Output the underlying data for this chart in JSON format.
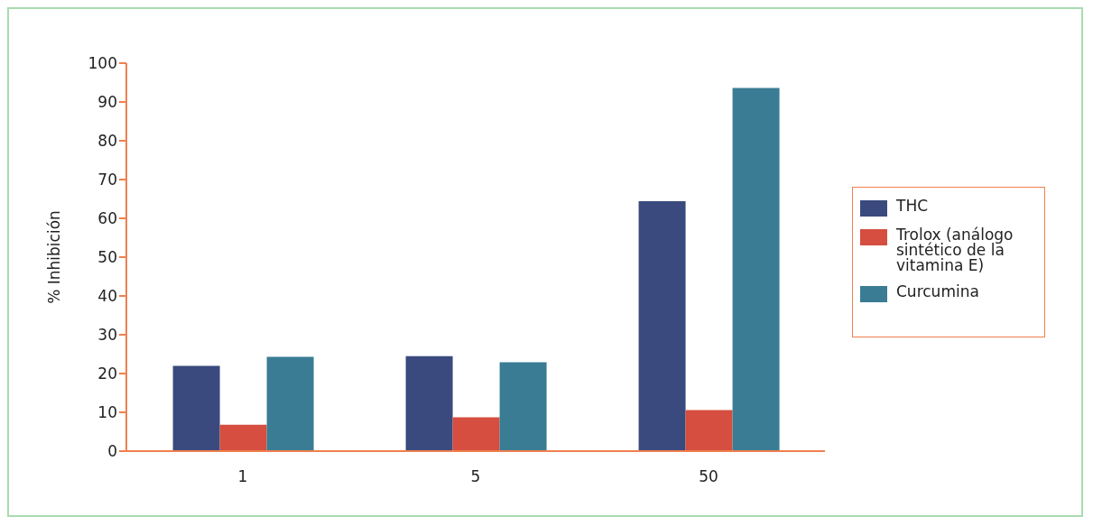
{
  "chart_data": {
    "type": "bar",
    "ylabel": "% Inhibición",
    "categories": [
      "1",
      "5",
      "50"
    ],
    "series": [
      {
        "name": "THC",
        "color": "#3a4a7e",
        "values": [
          22,
          24.5,
          64.4
        ]
      },
      {
        "name": "Trolox (análogo sintético de la vitamina E)",
        "color": "#d54e3f",
        "values": [
          6.8,
          8.7,
          10.6
        ]
      },
      {
        "name": "Curcumina",
        "color": "#3a7c94",
        "values": [
          24.3,
          22.9,
          93.6
        ]
      }
    ],
    "ylim": [
      0,
      100
    ],
    "yticks": [
      0,
      10,
      20,
      30,
      40,
      50,
      60,
      70,
      80,
      90,
      100
    ],
    "grid": false,
    "legend": "right"
  }
}
